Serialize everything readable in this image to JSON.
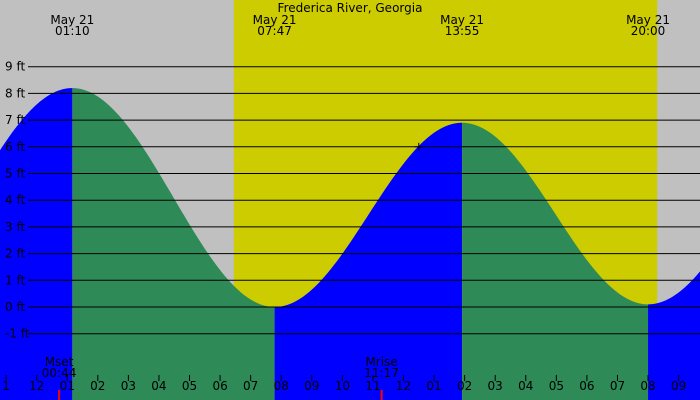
{
  "chart_data": {
    "type": "area",
    "title": "Frederica River, Georgia",
    "y_unit": "ft",
    "ylim": [
      -2,
      10
    ],
    "y_ticks": [
      {
        "label": "9 ft",
        "value": 9
      },
      {
        "label": "8 ft",
        "value": 8
      },
      {
        "label": "7 ft",
        "value": 7
      },
      {
        "label": "6 ft",
        "value": 6
      },
      {
        "label": "5 ft",
        "value": 5
      },
      {
        "label": "4 ft",
        "value": 4
      },
      {
        "label": "3 ft",
        "value": 3
      },
      {
        "label": "2 ft",
        "value": 2
      },
      {
        "label": "1 ft",
        "value": 1
      },
      {
        "label": "0 ft",
        "value": 0
      },
      {
        "label": "-1 ft",
        "value": -1
      }
    ],
    "x_domain_hours": [
      -1.2,
      21.7
    ],
    "x_ticks": [
      {
        "label": "1",
        "hour": -1
      },
      {
        "label": "12",
        "hour": 0
      },
      {
        "label": "01",
        "hour": 1
      },
      {
        "label": "02",
        "hour": 2
      },
      {
        "label": "03",
        "hour": 3
      },
      {
        "label": "04",
        "hour": 4
      },
      {
        "label": "05",
        "hour": 5
      },
      {
        "label": "06",
        "hour": 6
      },
      {
        "label": "07",
        "hour": 7
      },
      {
        "label": "08",
        "hour": 8
      },
      {
        "label": "09",
        "hour": 9
      },
      {
        "label": "10",
        "hour": 10
      },
      {
        "label": "11",
        "hour": 11
      },
      {
        "label": "12",
        "hour": 12
      },
      {
        "label": "01",
        "hour": 13
      },
      {
        "label": "02",
        "hour": 14
      },
      {
        "label": "03",
        "hour": 15
      },
      {
        "label": "04",
        "hour": 16
      },
      {
        "label": "05",
        "hour": 17
      },
      {
        "label": "06",
        "hour": 18
      },
      {
        "label": "07",
        "hour": 19
      },
      {
        "label": "08",
        "hour": 20
      },
      {
        "label": "09",
        "hour": 21
      }
    ],
    "extremes": [
      {
        "type": "high",
        "date": "May 21",
        "time": "01:10",
        "hour": 1.167,
        "height_ft": 8.2
      },
      {
        "type": "low",
        "date": "May 21",
        "time": "07:47",
        "hour": 7.783,
        "height_ft": 0.0
      },
      {
        "type": "high",
        "date": "May 21",
        "time": "13:55",
        "hour": 13.917,
        "height_ft": 6.9
      },
      {
        "type": "low",
        "date": "May 21",
        "time": "20:00",
        "hour": 20.0,
        "height_ft": 0.1
      }
    ],
    "daylight": {
      "start_hour": 6.45,
      "end_hour": 20.3
    },
    "moon_events": [
      {
        "label": "Mset",
        "time": "00:44",
        "hour": 0.733
      },
      {
        "label": "Mrise",
        "time": "11:17",
        "hour": 11.283
      }
    ],
    "current_marker": {
      "hour": 12.5,
      "height_ft": 6.0
    },
    "colors": {
      "background": "#c0c0c0",
      "daylight": "#cccc00",
      "rising": "#0000ff",
      "falling": "#2e8b57",
      "gridline": "#000000",
      "moon_tick": "#ff0000"
    }
  }
}
